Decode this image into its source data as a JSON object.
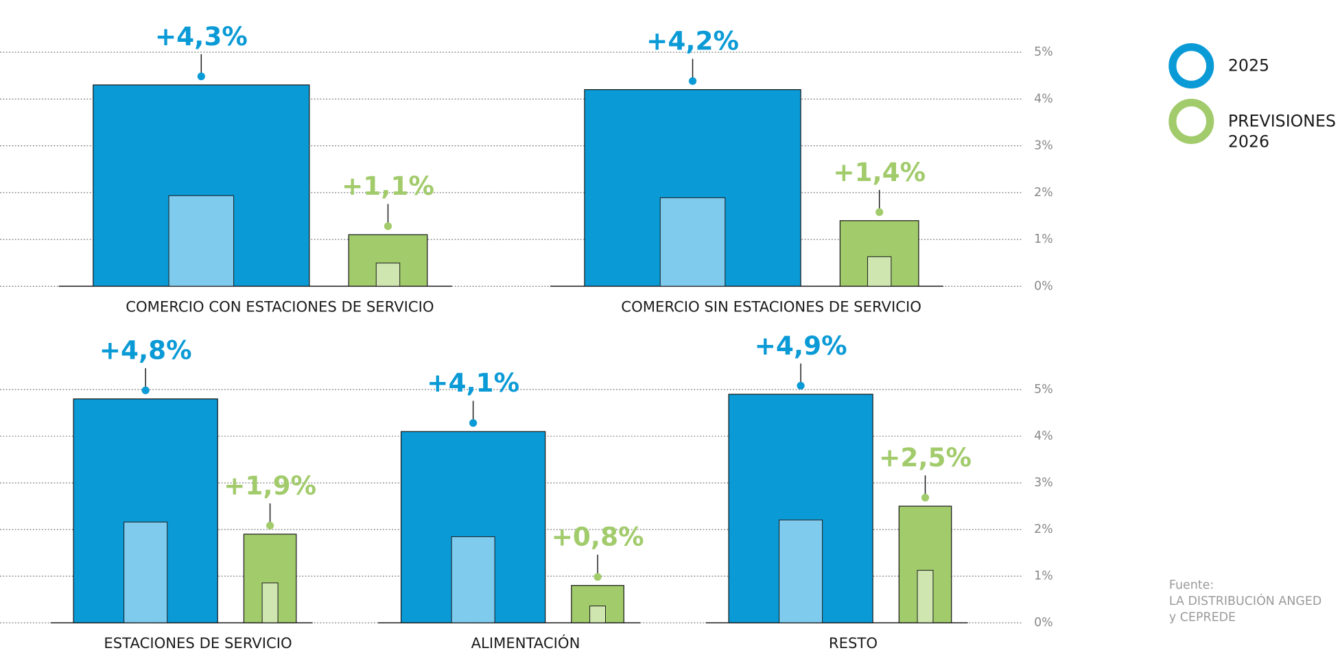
{
  "chart_data": [
    {
      "type": "bar",
      "categories": [
        "COMERCIO CON ESTACIONES DE SERVICIO",
        "COMERCIO SIN ESTACIONES DE SERVICIO"
      ],
      "series": [
        {
          "name": "2025",
          "color": "#0a9ad6",
          "values": [
            4.3,
            4.2
          ],
          "value_labels": [
            "+4,3%",
            "+4,2%"
          ]
        },
        {
          "name": "PREVISIONES 2026",
          "color": "#a2cb6c",
          "values": [
            1.1,
            1.4
          ],
          "value_labels": [
            "+1,1%",
            "+1,4%"
          ]
        }
      ],
      "ylim": [
        0,
        5
      ],
      "yticks": [
        {
          "value": 0,
          "label": "0%"
        },
        {
          "value": 1,
          "label": "1%"
        },
        {
          "value": 2,
          "label": "2%"
        },
        {
          "value": 3,
          "label": "3%"
        },
        {
          "value": 4,
          "label": "4%"
        },
        {
          "value": 5,
          "label": "5%"
        }
      ],
      "grid": true
    },
    {
      "type": "bar",
      "categories": [
        "ESTACIONES DE SERVICIO",
        "ALIMENTACIÓN",
        "RESTO"
      ],
      "series": [
        {
          "color": "#0a9ad6",
          "values": [
            4.8,
            4.1,
            4.9
          ],
          "value_labels": [
            "+4,8%",
            "+4,1%",
            "+4,9%"
          ]
        },
        {
          "color": "#a2cb6c",
          "values": [
            1.9,
            0.8,
            2.5
          ],
          "value_labels": [
            "+1,9%",
            "+0,8%",
            "+2,5%"
          ]
        }
      ],
      "ylim": [
        0,
        5
      ],
      "yticks": [
        {
          "value": 0,
          "label": "0%"
        },
        {
          "value": 1,
          "label": "1%"
        },
        {
          "value": 2,
          "label": "2%"
        },
        {
          "value": 3,
          "label": "3%"
        },
        {
          "value": 4,
          "label": "4%"
        },
        {
          "value": 5,
          "label": "5%"
        }
      ],
      "grid": true
    }
  ],
  "source": [
    "Fuente:",
    "LA DISTRIBUCIÓN ANGED",
    "y CEPREDE"
  ]
}
